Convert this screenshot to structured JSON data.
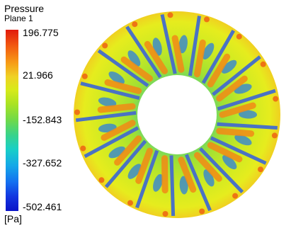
{
  "legend": {
    "title": "Pressure",
    "subtitle": "Plane 1",
    "ticks": [
      "196.775",
      "21.966",
      "-152.843",
      "-327.652",
      "-502.461"
    ],
    "units": "[Pa]",
    "range": [
      -502.461,
      196.775
    ],
    "colormap": [
      "#e11a0c",
      "#f79a16",
      "#d8ea1a",
      "#6ed94b",
      "#19cfc7",
      "#1470f0",
      "#0a14c8"
    ]
  },
  "contour_plot": {
    "blade_count": 17,
    "blade_color": "#4a72c4",
    "background_field_color": "#b8e840",
    "inner_hole_color": "#ffffff"
  }
}
